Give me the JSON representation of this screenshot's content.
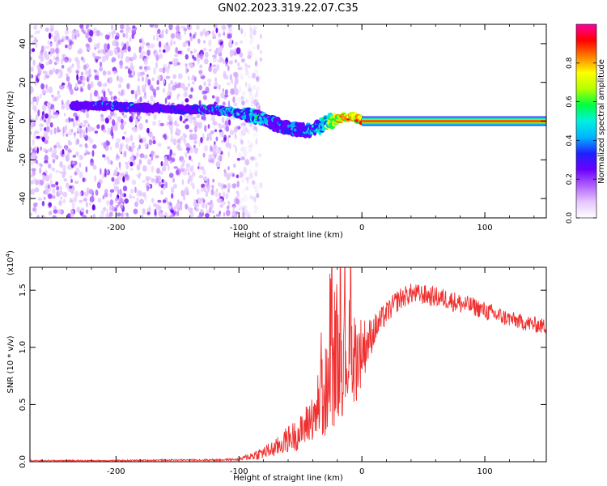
{
  "title": "GN02.2023.319.22.07.C35",
  "colors": {
    "snr_line": "#f03030",
    "axis": "#000000"
  },
  "colormap": [
    "#ffffff",
    "#e6c6ff",
    "#b060ff",
    "#6a00ff",
    "#2020ff",
    "#00b4ff",
    "#00f0e0",
    "#00ff40",
    "#b4ff00",
    "#ffff00",
    "#ff8000",
    "#ff0000",
    "#ff00a0"
  ],
  "chart_data": [
    {
      "type": "heatmap",
      "xlabel": "Height of straight line (km)",
      "ylabel": "Frequency (Hz)",
      "xlim": [
        -270,
        150
      ],
      "ylim": [
        -50,
        50
      ],
      "x_ticks": [
        -200,
        -100,
        0,
        100
      ],
      "x_tick_labels": [
        "-200",
        "-100",
        "0",
        "100"
      ],
      "y_ticks": [
        -40,
        -20,
        0,
        20,
        40
      ],
      "y_tick_labels": [
        "-40",
        "-20",
        "0",
        "20",
        "40"
      ],
      "grid": false,
      "colorbar": {
        "label": "Normalized spectral amplitude",
        "range": [
          0.0,
          1.0
        ],
        "ticks": [
          0.0,
          0.2,
          0.4,
          0.6,
          0.8
        ],
        "tick_labels": [
          "0.0",
          "0.2",
          "0.4",
          "0.6",
          "0.8"
        ]
      },
      "noise_region_x": [
        -270,
        -100
      ],
      "ridge": {
        "x": [
          -235,
          -210,
          -180,
          -150,
          -120,
          -100,
          -85,
          -70,
          -55,
          -45,
          -35,
          -25,
          -15,
          -5,
          0,
          150
        ],
        "y": [
          8,
          8,
          7,
          6,
          6,
          4,
          2,
          -2,
          -4,
          -5,
          -3,
          0,
          2,
          2,
          0,
          0
        ],
        "amplitude": [
          0.3,
          0.4,
          0.35,
          0.35,
          0.45,
          0.5,
          0.6,
          0.4,
          0.45,
          0.45,
          0.55,
          0.8,
          0.95,
          0.9,
          1.0,
          1.0
        ]
      }
    },
    {
      "type": "line",
      "xlabel": "Height of straight line (km)",
      "ylabel": "SNR (10 * v/v)",
      "multiplier_label": "(x10",
      "multiplier_exponent": "4",
      "multiplier_close": ")",
      "xlim": [
        -270,
        150
      ],
      "ylim": [
        0,
        1.7
      ],
      "x_ticks": [
        -200,
        -100,
        0,
        100
      ],
      "x_tick_labels": [
        "-200",
        "-100",
        "0",
        "100"
      ],
      "y_ticks": [
        0.0,
        0.5,
        1.0,
        1.5
      ],
      "y_tick_labels": [
        "0.0",
        "0.5",
        "1.0",
        "1.5"
      ],
      "grid": false,
      "series": [
        {
          "x": [
            -270,
            -250,
            -200,
            -150,
            -120,
            -100,
            -90,
            -80,
            -70,
            -60,
            -50,
            -40,
            -30,
            -25,
            -20,
            -15,
            -10,
            -5,
            0,
            5,
            10,
            20,
            30,
            40,
            50,
            60,
            70,
            80,
            90,
            100,
            110,
            120,
            130,
            140,
            150
          ],
          "y": [
            0.01,
            0.01,
            0.01,
            0.015,
            0.015,
            0.02,
            0.05,
            0.08,
            0.12,
            0.2,
            0.25,
            0.4,
            0.6,
            0.75,
            0.9,
            0.95,
            0.95,
            0.9,
            0.98,
            1.05,
            1.15,
            1.3,
            1.42,
            1.47,
            1.46,
            1.44,
            1.42,
            1.38,
            1.36,
            1.32,
            1.28,
            1.25,
            1.22,
            1.2,
            1.18
          ],
          "noise_amplitude": [
            0.005,
            0.005,
            0.006,
            0.006,
            0.008,
            0.01,
            0.04,
            0.06,
            0.08,
            0.12,
            0.15,
            0.22,
            0.4,
            0.5,
            0.55,
            0.55,
            0.5,
            0.4,
            0.3,
            0.2,
            0.14,
            0.1,
            0.1,
            0.09,
            0.09,
            0.09,
            0.09,
            0.09,
            0.08,
            0.08,
            0.08,
            0.07,
            0.07,
            0.07,
            0.07
          ]
        }
      ]
    }
  ]
}
